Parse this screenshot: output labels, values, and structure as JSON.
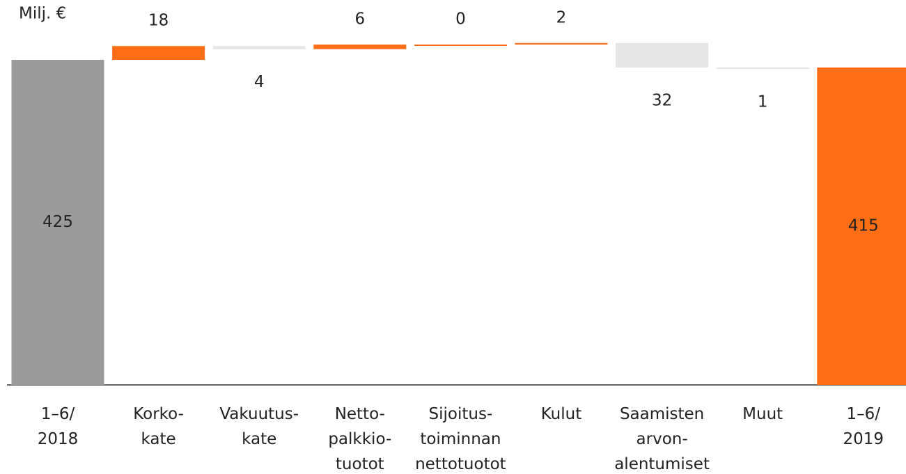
{
  "chart_data": {
    "type": "waterfall",
    "ylabel": "Milj. €",
    "categories": [
      "1–6/\n2018",
      "Korko-\nkate",
      "Vakuutus-\nkate",
      "Netto-\npalkkio-\ntuotot",
      "Sijoitus-\ntoiminnan\nnettotuotot",
      "Kulut",
      "Saamisten\narvon-\nalentumiset",
      "Muut",
      "1–6/\n2019"
    ],
    "values": [
      425,
      18,
      -4,
      6,
      0,
      2,
      -32,
      -1,
      415
    ],
    "value_labels": [
      "425",
      "18",
      "4",
      "6",
      "0",
      "2",
      "32",
      "1",
      "415"
    ],
    "colors": [
      "#9b9b9b",
      "#ff6e14",
      "#e6e6e6",
      "#ff6e14",
      "#ff6e14",
      "#ff6e14",
      "#e6e6e6",
      "#e6e6e6",
      "#ff6e14"
    ],
    "ylim": [
      0,
      450
    ]
  }
}
